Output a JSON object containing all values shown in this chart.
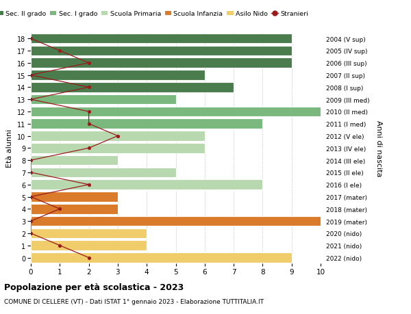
{
  "ages": [
    18,
    17,
    16,
    15,
    14,
    13,
    12,
    11,
    10,
    9,
    8,
    7,
    6,
    5,
    4,
    3,
    2,
    1,
    0
  ],
  "right_labels": [
    "2004 (V sup)",
    "2005 (IV sup)",
    "2006 (III sup)",
    "2007 (II sup)",
    "2008 (I sup)",
    "2009 (III med)",
    "2010 (II med)",
    "2011 (I med)",
    "2012 (V ele)",
    "2013 (IV ele)",
    "2014 (III ele)",
    "2015 (II ele)",
    "2016 (I ele)",
    "2017 (mater)",
    "2018 (mater)",
    "2019 (mater)",
    "2020 (nido)",
    "2021 (nido)",
    "2022 (nido)"
  ],
  "bar_values": [
    9,
    9,
    9,
    6,
    7,
    5,
    10,
    8,
    6,
    6,
    3,
    5,
    8,
    3,
    3,
    10,
    4,
    4,
    9
  ],
  "bar_colors": [
    "#4a7c4e",
    "#4a7c4e",
    "#4a7c4e",
    "#4a7c4e",
    "#4a7c4e",
    "#7ab87e",
    "#7ab87e",
    "#7ab87e",
    "#b8d8b0",
    "#b8d8b0",
    "#b8d8b0",
    "#b8d8b0",
    "#b8d8b0",
    "#d97b2a",
    "#d97b2a",
    "#d97b2a",
    "#f0cc6a",
    "#f0cc6a",
    "#f0cc6a"
  ],
  "stranieri_values": [
    0,
    1,
    2,
    0,
    2,
    0,
    2,
    2,
    3,
    2,
    0,
    0,
    2,
    0,
    1,
    0,
    0,
    1,
    2
  ],
  "stranieri_color": "#9b1b1b",
  "legend_labels": [
    "Sec. II grado",
    "Sec. I grado",
    "Scuola Primaria",
    "Scuola Infanzia",
    "Asilo Nido",
    "Stranieri"
  ],
  "legend_colors": [
    "#4a7c4e",
    "#7ab87e",
    "#b8d8b0",
    "#d97b2a",
    "#f0cc6a",
    "#9b1b1b"
  ],
  "ylabel_left": "Età alunni",
  "ylabel_right": "Anni di nascita",
  "title": "Popolazione per età scolastica - 2023",
  "subtitle": "COMUNE DI CELLERE (VT) - Dati ISTAT 1° gennaio 2023 - Elaborazione TUTTITALIA.IT",
  "xlim": [
    0,
    10
  ],
  "ylim": [
    -0.5,
    18.5
  ],
  "background_color": "#ffffff",
  "bar_edge_color": "#ffffff",
  "grid_color": "#cccccc",
  "bar_height": 0.82
}
